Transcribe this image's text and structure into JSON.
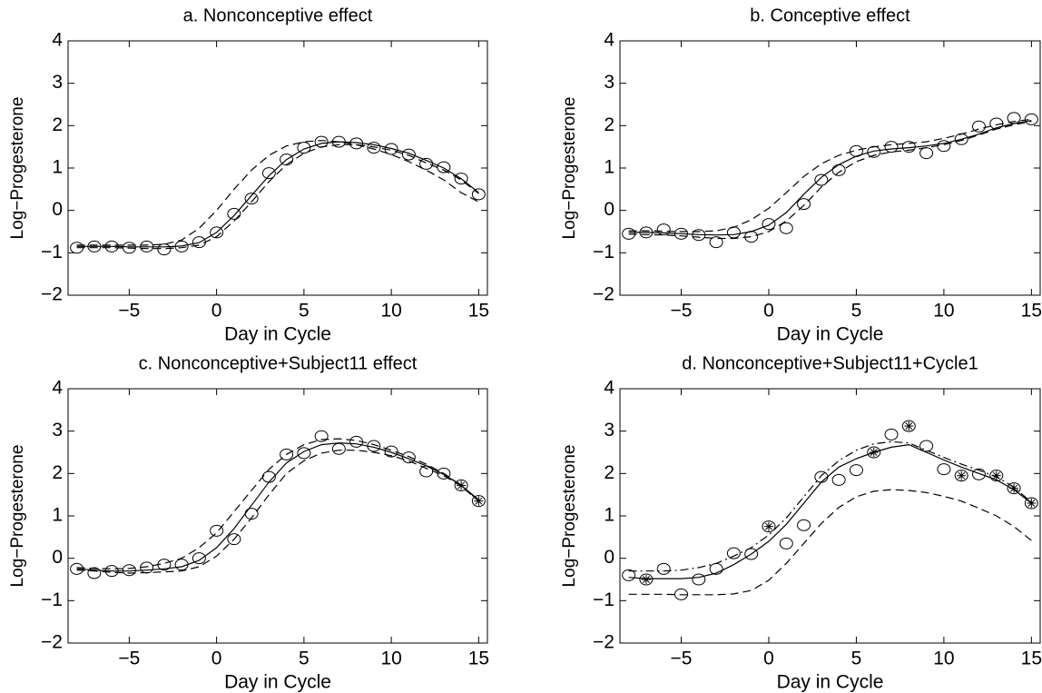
{
  "chart_data": [
    {
      "type": "line",
      "title": "a. Nonconceptive effect",
      "xlabel": "Day in Cycle",
      "ylabel": "Log−Progesterone",
      "xlim": [
        -8.5,
        15.5
      ],
      "ylim": [
        -2,
        4
      ],
      "xticks": [
        {
          "value": -5,
          "label": "−5"
        },
        0,
        5,
        10,
        15
      ],
      "yticks": [
        {
          "value": -2,
          "label": "−2"
        },
        {
          "value": -1,
          "label": "−1"
        },
        0,
        1,
        2,
        3,
        4
      ],
      "series": [
        {
          "style": "markers",
          "marker": "circle",
          "color": "#000000",
          "x": [
            -8,
            -7,
            -6,
            -5,
            -4,
            -3,
            -2,
            -1,
            0,
            1,
            2,
            3,
            4,
            5,
            6,
            7,
            8,
            9,
            10,
            11,
            12,
            13,
            14,
            15
          ],
          "values": [
            -0.88,
            -0.85,
            -0.85,
            -0.88,
            -0.85,
            -0.92,
            -0.85,
            -0.75,
            -0.52,
            -0.08,
            0.28,
            0.88,
            1.2,
            1.48,
            1.62,
            1.62,
            1.58,
            1.48,
            1.45,
            1.32,
            1.1,
            1.02,
            0.75,
            0.38
          ]
        },
        {
          "style": "solid",
          "color": "#000000",
          "x": [
            -8,
            -7,
            -6,
            -5,
            -4,
            -3,
            -2,
            -1,
            0,
            1,
            2,
            3,
            4,
            5,
            6,
            7,
            8,
            9,
            10,
            11,
            12,
            13,
            14,
            15
          ],
          "values": [
            -0.85,
            -0.85,
            -0.85,
            -0.86,
            -0.86,
            -0.86,
            -0.84,
            -0.76,
            -0.52,
            -0.12,
            0.35,
            0.82,
            1.2,
            1.45,
            1.58,
            1.62,
            1.6,
            1.55,
            1.46,
            1.35,
            1.18,
            1.0,
            0.75,
            0.42
          ]
        },
        {
          "style": "dashed",
          "color": "#000000",
          "x": [
            -8,
            -7,
            -6,
            -5,
            -4,
            -3,
            -2,
            -1,
            0,
            1,
            2,
            3,
            4,
            5,
            6,
            7,
            8,
            9,
            10,
            11,
            12,
            13,
            14,
            15
          ],
          "values": [
            -0.82,
            -0.82,
            -0.82,
            -0.82,
            -0.82,
            -0.8,
            -0.7,
            -0.42,
            0.0,
            0.5,
            0.95,
            1.3,
            1.52,
            1.62,
            1.65,
            1.62,
            1.55,
            1.45,
            1.32,
            1.15,
            0.95,
            0.72,
            0.42,
            0.2
          ]
        },
        {
          "style": "dashed",
          "color": "#000000",
          "x": [
            -8,
            -7,
            -6,
            -5,
            -4,
            -3,
            -2,
            -1,
            0,
            1,
            2,
            3,
            4,
            5,
            6,
            7,
            8,
            9,
            10,
            11,
            12,
            13,
            14,
            15
          ],
          "values": [
            -0.88,
            -0.88,
            -0.88,
            -0.89,
            -0.9,
            -0.9,
            -0.88,
            -0.82,
            -0.62,
            -0.25,
            0.2,
            0.68,
            1.08,
            1.35,
            1.5,
            1.55,
            1.55,
            1.5,
            1.42,
            1.3,
            1.12,
            0.95,
            0.72,
            0.4
          ]
        }
      ]
    },
    {
      "type": "line",
      "title": "b. Conceptive effect",
      "xlabel": "Day in Cycle",
      "ylabel": "Log−Progesterone",
      "xlim": [
        -8.5,
        15.5
      ],
      "ylim": [
        -2,
        4
      ],
      "xticks": [
        {
          "value": -5,
          "label": "−5"
        },
        0,
        5,
        10,
        15
      ],
      "yticks": [
        {
          "value": -2,
          "label": "−2"
        },
        {
          "value": -1,
          "label": "−1"
        },
        0,
        1,
        2,
        3,
        4
      ],
      "series": [
        {
          "style": "markers",
          "marker": "circle",
          "color": "#000000",
          "x": [
            -8,
            -7,
            -6,
            -5,
            -4,
            -3,
            -2,
            -1,
            0,
            1,
            2,
            3,
            4,
            5,
            6,
            7,
            8,
            9,
            10,
            11,
            12,
            13,
            14,
            15
          ],
          "values": [
            -0.55,
            -0.52,
            -0.45,
            -0.55,
            -0.58,
            -0.75,
            -0.52,
            -0.62,
            -0.32,
            -0.42,
            0.15,
            0.72,
            0.95,
            1.4,
            1.38,
            1.5,
            1.5,
            1.35,
            1.52,
            1.68,
            1.98,
            2.05,
            2.18,
            2.15
          ]
        },
        {
          "style": "solid",
          "color": "#000000",
          "x": [
            -8,
            -7,
            -6,
            -5,
            -4,
            -3,
            -2,
            -1,
            0,
            1,
            2,
            3,
            4,
            5,
            6,
            7,
            8,
            9,
            10,
            11,
            12,
            13,
            14,
            15
          ],
          "values": [
            -0.52,
            -0.52,
            -0.53,
            -0.55,
            -0.57,
            -0.58,
            -0.57,
            -0.5,
            -0.35,
            -0.05,
            0.38,
            0.78,
            1.08,
            1.28,
            1.4,
            1.45,
            1.48,
            1.52,
            1.58,
            1.68,
            1.8,
            1.95,
            2.05,
            2.12
          ]
        },
        {
          "style": "dashed",
          "color": "#000000",
          "x": [
            -8,
            -7,
            -6,
            -5,
            -4,
            -3,
            -2,
            -1,
            0,
            1,
            2,
            3,
            4,
            5,
            6,
            7,
            8,
            9,
            10,
            11,
            12,
            13,
            14,
            15
          ],
          "values": [
            -0.48,
            -0.48,
            -0.49,
            -0.5,
            -0.5,
            -0.48,
            -0.4,
            -0.22,
            0.05,
            0.42,
            0.8,
            1.1,
            1.3,
            1.42,
            1.5,
            1.55,
            1.58,
            1.62,
            1.7,
            1.8,
            1.92,
            2.02,
            2.1,
            2.15
          ]
        },
        {
          "style": "dashed",
          "color": "#000000",
          "x": [
            -8,
            -7,
            -6,
            -5,
            -4,
            -3,
            -2,
            -1,
            0,
            1,
            2,
            3,
            4,
            5,
            6,
            7,
            8,
            9,
            10,
            11,
            12,
            13,
            14,
            15
          ],
          "values": [
            -0.56,
            -0.57,
            -0.58,
            -0.6,
            -0.63,
            -0.66,
            -0.66,
            -0.62,
            -0.5,
            -0.25,
            0.12,
            0.55,
            0.9,
            1.15,
            1.3,
            1.38,
            1.42,
            1.48,
            1.55,
            1.65,
            1.78,
            1.92,
            2.02,
            2.1
          ]
        }
      ]
    },
    {
      "type": "line",
      "title": "c. Nonconceptive+Subject11 effect",
      "xlabel": "Day in Cycle",
      "ylabel": "Log−Progesterone",
      "xlim": [
        -8.5,
        15.5
      ],
      "ylim": [
        -2,
        4
      ],
      "xticks": [
        {
          "value": -5,
          "label": "−5"
        },
        0,
        5,
        10,
        15
      ],
      "yticks": [
        {
          "value": -2,
          "label": "−2"
        },
        {
          "value": -1,
          "label": "−1"
        },
        0,
        1,
        2,
        3,
        4
      ],
      "series": [
        {
          "style": "markers",
          "marker": "circle",
          "color": "#000000",
          "x": [
            -8,
            -7,
            -6,
            -5,
            -4,
            -3,
            -2,
            -1,
            0,
            1,
            2,
            3,
            4,
            5,
            6,
            7,
            8,
            9,
            10,
            11,
            12,
            13
          ],
          "values": [
            -0.25,
            -0.35,
            -0.3,
            -0.28,
            -0.22,
            -0.15,
            -0.15,
            0.0,
            0.65,
            0.45,
            1.05,
            1.92,
            2.45,
            2.48,
            2.88,
            2.58,
            2.75,
            2.65,
            2.52,
            2.38,
            2.05,
            2.0
          ]
        },
        {
          "style": "markers",
          "marker": "circle-star",
          "color": "#000000",
          "x": [
            14,
            15
          ],
          "values": [
            1.72,
            1.35
          ]
        },
        {
          "style": "solid",
          "color": "#000000",
          "x": [
            -8,
            -7,
            -6,
            -5,
            -4,
            -3,
            -2,
            -1,
            0,
            1,
            2,
            3,
            4,
            5,
            6,
            7,
            8,
            9,
            10,
            11,
            12,
            13,
            14,
            15
          ],
          "values": [
            -0.25,
            -0.28,
            -0.3,
            -0.3,
            -0.28,
            -0.25,
            -0.2,
            -0.05,
            0.25,
            0.7,
            1.25,
            1.8,
            2.25,
            2.52,
            2.68,
            2.72,
            2.7,
            2.62,
            2.5,
            2.35,
            2.18,
            1.98,
            1.72,
            1.38
          ]
        },
        {
          "style": "dashed",
          "color": "#000000",
          "x": [
            -8,
            -7,
            -6,
            -5,
            -4,
            -3,
            -2,
            -1,
            0,
            1,
            2,
            3,
            4,
            5,
            6,
            7,
            8,
            9,
            10,
            11,
            12,
            13,
            14,
            15
          ],
          "values": [
            -0.22,
            -0.24,
            -0.25,
            -0.24,
            -0.2,
            -0.12,
            0.0,
            0.25,
            0.6,
            1.1,
            1.6,
            2.1,
            2.45,
            2.68,
            2.8,
            2.82,
            2.78,
            2.68,
            2.55,
            2.4,
            2.22,
            2.0,
            1.72,
            1.35
          ]
        },
        {
          "style": "dashed",
          "color": "#000000",
          "x": [
            -8,
            -7,
            -6,
            -5,
            -4,
            -3,
            -2,
            -1,
            0,
            1,
            2,
            3,
            4,
            5,
            6,
            7,
            8,
            9,
            10,
            11,
            12,
            13,
            14,
            15
          ],
          "values": [
            -0.28,
            -0.3,
            -0.33,
            -0.35,
            -0.34,
            -0.32,
            -0.3,
            -0.2,
            0.05,
            0.45,
            0.95,
            1.5,
            2.0,
            2.3,
            2.48,
            2.55,
            2.55,
            2.5,
            2.42,
            2.3,
            2.12,
            1.95,
            1.7,
            1.35
          ]
        }
      ]
    },
    {
      "type": "line",
      "title": "d. Nonconceptive+Subject11+Cycle1",
      "xlabel": "Day in Cycle",
      "ylabel": "Log−Progesterone",
      "xlim": [
        -8.5,
        15.5
      ],
      "ylim": [
        -2,
        4
      ],
      "xticks": [
        {
          "value": -5,
          "label": "−5"
        },
        0,
        5,
        10,
        15
      ],
      "yticks": [
        {
          "value": -2,
          "label": "−2"
        },
        {
          "value": -1,
          "label": "−1"
        },
        0,
        1,
        2,
        3,
        4
      ],
      "series": [
        {
          "style": "markers",
          "marker": "circle",
          "color": "#000000",
          "x": [
            -8,
            -6,
            -5,
            -4,
            -3,
            -2,
            -1,
            1,
            2,
            3,
            4,
            5,
            7,
            9,
            10,
            12
          ],
          "values": [
            -0.4,
            -0.25,
            -0.85,
            -0.5,
            -0.25,
            0.12,
            0.1,
            0.35,
            0.78,
            1.92,
            1.85,
            2.08,
            2.92,
            2.65,
            2.1,
            1.98
          ]
        },
        {
          "style": "markers",
          "marker": "circle-star",
          "color": "#000000",
          "x": [
            -7,
            0,
            6,
            8,
            11,
            13,
            14,
            15
          ],
          "values": [
            -0.5,
            0.75,
            2.5,
            3.12,
            1.95,
            1.95,
            1.65,
            1.3
          ]
        },
        {
          "style": "solid",
          "color": "#000000",
          "x": [
            -8,
            -7,
            -6,
            -5,
            -4,
            -3,
            -2,
            -1,
            0,
            1,
            2,
            3,
            4,
            5,
            6,
            7,
            8,
            9,
            10,
            11,
            12,
            13,
            14,
            15
          ],
          "values": [
            -0.45,
            -0.48,
            -0.48,
            -0.48,
            -0.45,
            -0.35,
            -0.15,
            0.1,
            0.4,
            0.8,
            1.3,
            1.8,
            2.15,
            2.35,
            2.5,
            2.62,
            2.68,
            2.5,
            2.32,
            2.15,
            2.0,
            1.85,
            1.62,
            1.3
          ]
        },
        {
          "style": "dashdot",
          "color": "#000000",
          "x": [
            -8,
            -7,
            -6,
            -5,
            -4,
            -3,
            -2,
            -1,
            0,
            1,
            2,
            3,
            4,
            5,
            6,
            7,
            8,
            9,
            10,
            11,
            12,
            13,
            14,
            15
          ],
          "values": [
            -0.3,
            -0.3,
            -0.3,
            -0.28,
            -0.22,
            -0.12,
            0.05,
            0.25,
            0.55,
            0.95,
            1.45,
            1.95,
            2.3,
            2.55,
            2.7,
            2.75,
            2.72,
            2.55,
            2.38,
            2.22,
            2.08,
            1.92,
            1.68,
            1.32
          ]
        },
        {
          "style": "dashed",
          "color": "#000000",
          "x": [
            -8,
            -7,
            -6,
            -5,
            -4,
            -3,
            -2,
            -1,
            0,
            1,
            2,
            3,
            4,
            5,
            6,
            7,
            8,
            9,
            10,
            11,
            12,
            13,
            14,
            15
          ],
          "values": [
            -0.85,
            -0.85,
            -0.85,
            -0.86,
            -0.86,
            -0.86,
            -0.84,
            -0.76,
            -0.52,
            -0.12,
            0.35,
            0.82,
            1.2,
            1.45,
            1.58,
            1.62,
            1.6,
            1.55,
            1.46,
            1.35,
            1.18,
            1.0,
            0.75,
            0.42
          ]
        }
      ]
    }
  ]
}
